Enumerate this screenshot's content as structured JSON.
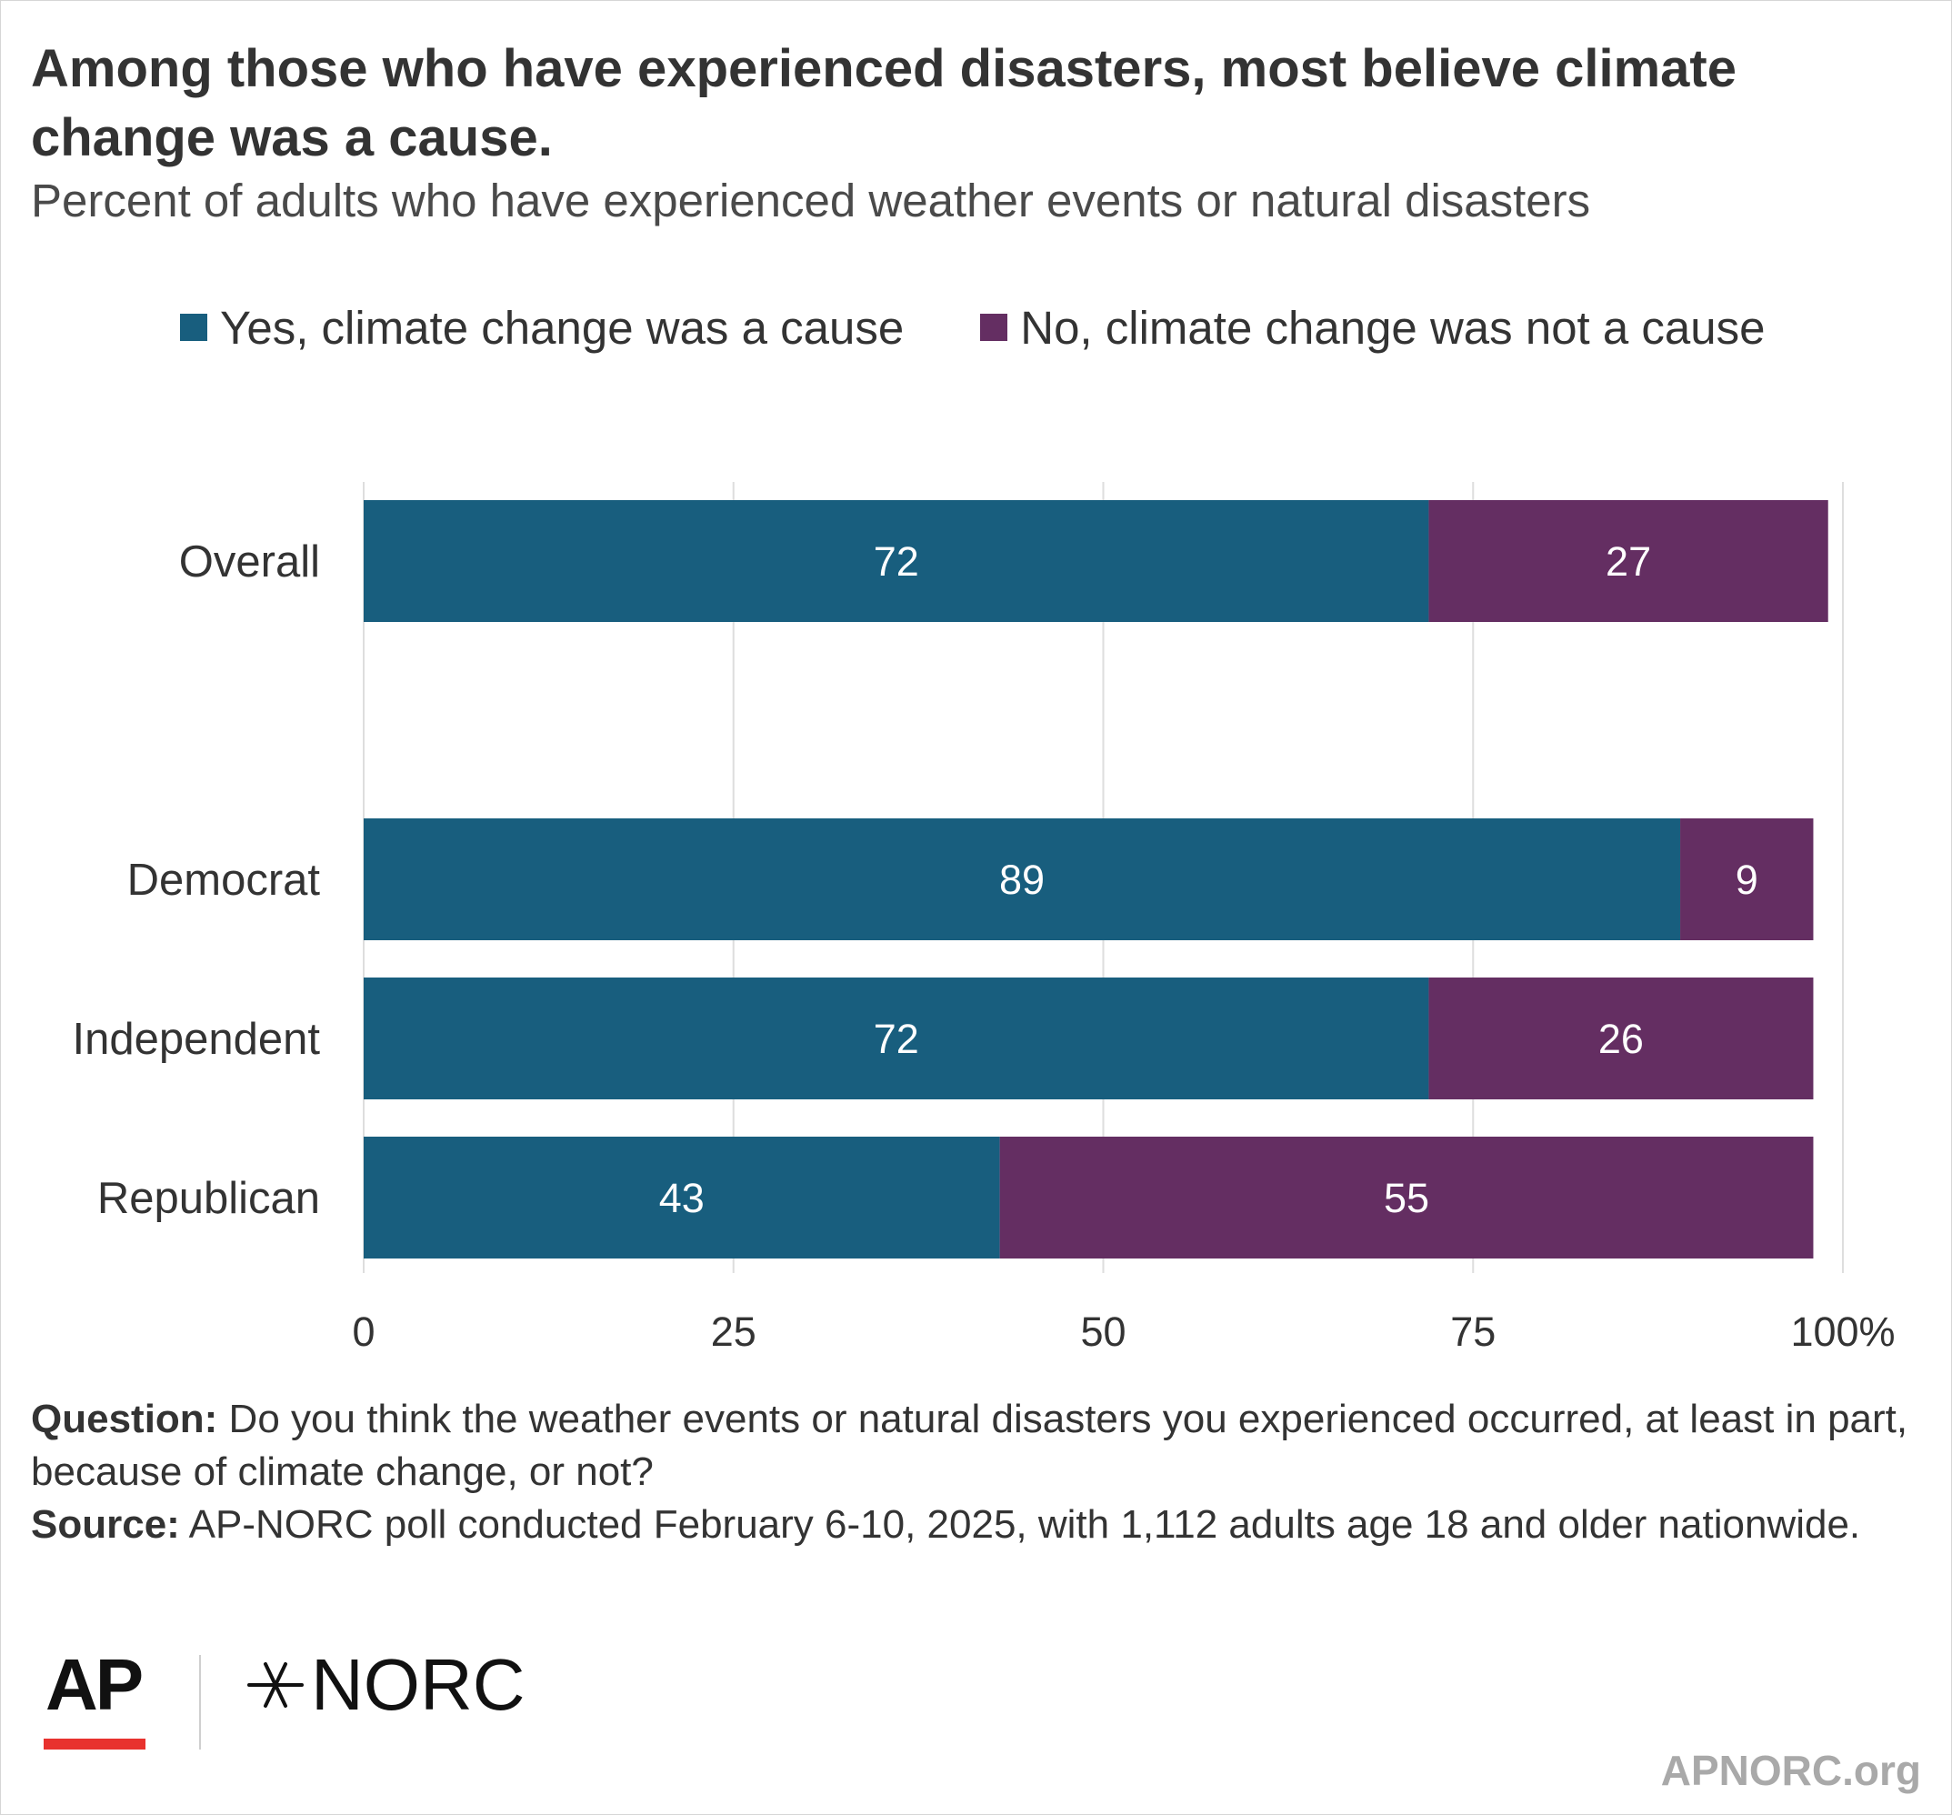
{
  "title": "Among those who have experienced disasters, most believe climate change was a cause.",
  "subtitle": "Percent of adults who have experienced weather events or natural disasters",
  "chart_data": {
    "type": "bar",
    "orientation": "horizontal",
    "stacked": true,
    "categories": [
      "Overall",
      "Democrat",
      "Independent",
      "Republican"
    ],
    "series": [
      {
        "name": "Yes, climate change was a cause",
        "color": "#185e7e",
        "values": [
          72,
          89,
          72,
          43
        ]
      },
      {
        "name": "No, climate change was not a cause",
        "color": "#642e62",
        "values": [
          27,
          9,
          26,
          55
        ]
      }
    ],
    "xlim": [
      0,
      100
    ],
    "xticks": [
      "0",
      "25",
      "50",
      "75",
      "100%"
    ],
    "grid": true,
    "legend": "top"
  },
  "notes": {
    "question_label": "Question:",
    "question_text": " Do you think the weather events or natural disasters you experienced occurred, at least in part, because of climate change, or not?",
    "source_label": "Source:",
    "source_text": " AP-NORC poll conducted February 6-10, 2025, with 1,112 adults age 18 and older nationwide."
  },
  "logos": {
    "ap": "AP",
    "norc": "NORC",
    "norc_icon": "norc-star-icon"
  },
  "site": "APNORC.org"
}
